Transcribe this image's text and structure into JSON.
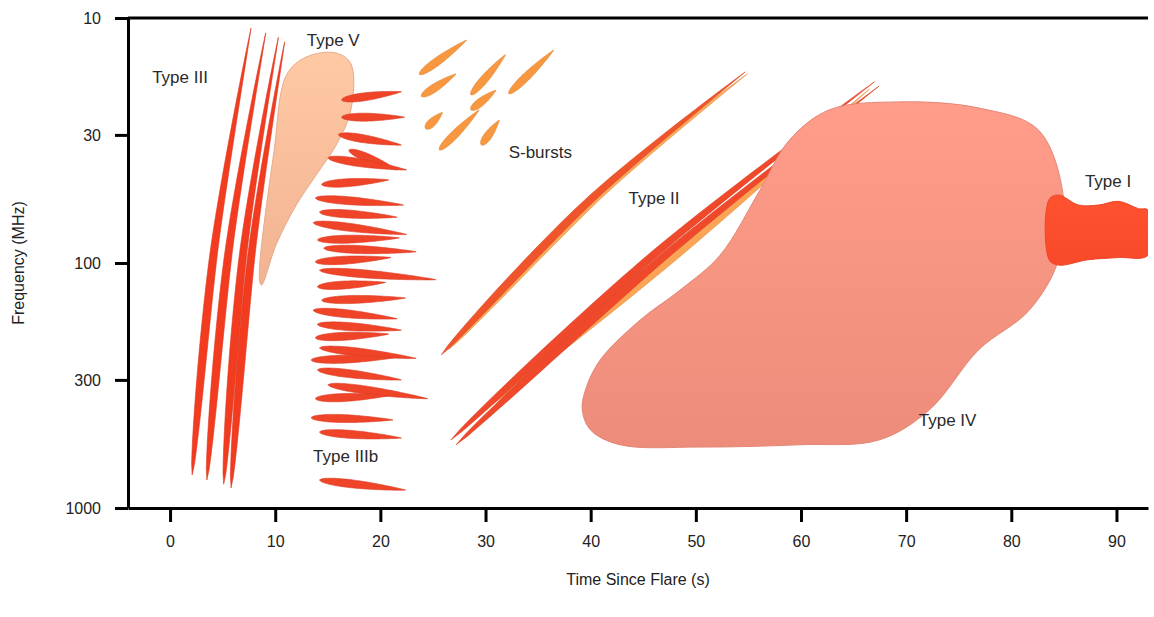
{
  "chart_data": {
    "type": "schematic",
    "x_label": "Time Since Flare (s)",
    "y_label": "Frequency (MHz)",
    "xlim": [
      -4,
      93
    ],
    "xticks": [
      0,
      10,
      20,
      30,
      40,
      50,
      60,
      70,
      80,
      90
    ],
    "ylim": [
      10,
      1000
    ],
    "yticks": [
      10,
      30,
      100,
      300,
      1000
    ],
    "log": "y",
    "series": [
      {
        "name": "Type V",
        "type": "region",
        "color": "#f9b896",
        "label_at": [
          13.0,
          12.5
        ],
        "shapes": [
          {
            "t": [
              8.5,
              9.9,
              11.1,
              13.0,
              15.8,
              17.2,
              17.2,
              15.8,
              13.9,
              12.0,
              10.1,
              8.7
            ],
            "f": [
              117,
              34.6,
              17,
              14.4,
              13.9,
              15.4,
              23.7,
              33,
              43.7,
              58,
              84,
              123
            ]
          }
        ]
      },
      {
        "name": "Type III",
        "type": "streak",
        "color": "#f33b1f",
        "label_at": [
          -1.7,
          17.6
        ],
        "shapes": [
          {
            "t": [
              2.1,
              4.2,
              7.7
            ],
            "f": [
              733,
              88,
              11
            ]
          },
          {
            "t": [
              3.5,
              5.6,
              9.1
            ],
            "f": [
              769,
              88,
              11.5
            ]
          },
          {
            "t": [
              5.1,
              7.0,
              10.3
            ],
            "f": [
              800,
              88,
              12
            ]
          },
          {
            "t": [
              5.8,
              7.8,
              10.9
            ],
            "f": [
              828,
              88,
              12.5
            ]
          }
        ]
      },
      {
        "name": "Type IIIb",
        "type": "streak",
        "color": "#f04429",
        "label_at": [
          13.6,
          620
        ],
        "shapes": [
          {
            "t": [
              16.3,
              22.0
            ],
            "f": [
              21.6,
              20
            ]
          },
          {
            "t": [
              16.3,
              22.3
            ],
            "f": [
              25.4,
              25.4
            ]
          },
          {
            "t": [
              16.0,
              22.0
            ],
            "f": [
              29.9,
              33
            ]
          },
          {
            "t": [
              17.0,
              21.6
            ],
            "f": [
              34.6,
              41.7
            ]
          },
          {
            "t": [
              15.0,
              22.5
            ],
            "f": [
              37.2,
              41.7
            ]
          },
          {
            "t": [
              14.4,
              20.8
            ],
            "f": [
              47.8,
              45.8
            ]
          },
          {
            "t": [
              13.8,
              22.2
            ],
            "f": [
              54.3,
              58
            ]
          },
          {
            "t": [
              14.2,
              21.6
            ],
            "f": [
              62,
              65
            ]
          },
          {
            "t": [
              13.6,
              22.5
            ],
            "f": [
              68.5,
              76.5
            ]
          },
          {
            "t": [
              14.0,
              21.8
            ],
            "f": [
              80.5,
              79
            ]
          },
          {
            "t": [
              14.6,
              23.4
            ],
            "f": [
              87,
              90
            ]
          },
          {
            "t": [
              13.8,
              21.0
            ],
            "f": [
              99,
              95
            ]
          },
          {
            "t": [
              14.2,
              25.3
            ],
            "f": [
              107,
              117
            ]
          },
          {
            "t": [
              14.0,
              20.5
            ],
            "f": [
              125,
              120
            ]
          },
          {
            "t": [
              14.4,
              22.4
            ],
            "f": [
              142,
              139
            ]
          },
          {
            "t": [
              13.6,
              21.6
            ],
            "f": [
              156,
              169
            ]
          },
          {
            "t": [
              14.0,
              22.0
            ],
            "f": [
              178,
              188
            ]
          },
          {
            "t": [
              13.8,
              20.8
            ],
            "f": [
              202,
              195
            ]
          },
          {
            "t": [
              14.2,
              23.4
            ],
            "f": [
              222,
              245
            ]
          },
          {
            "t": [
              13.4,
              21.2
            ],
            "f": [
              249,
              244
            ]
          },
          {
            "t": [
              14.0,
              22.0
            ],
            "f": [
              273,
              300
            ]
          },
          {
            "t": [
              15.0,
              24.5
            ],
            "f": [
              314,
              358
            ]
          },
          {
            "t": [
              13.8,
              20.8
            ],
            "f": [
              358,
              348
            ]
          },
          {
            "t": [
              13.4,
              21.2
            ],
            "f": [
              428,
              437
            ]
          },
          {
            "t": [
              14.2,
              22.0
            ],
            "f": [
              490,
              518
            ]
          },
          {
            "t": [
              14.2,
              22.4
            ],
            "f": [
              769,
              845
            ]
          }
        ]
      },
      {
        "name": "S-bursts",
        "type": "streak",
        "color": "#f7973f",
        "label_at": [
          32.2,
          35.6
        ],
        "shapes": [
          {
            "t": [
              23.7,
              28.2
            ],
            "f": [
              17,
              12.3
            ]
          },
          {
            "t": [
              23.9,
              27.2
            ],
            "f": [
              20.9,
              16.9
            ]
          },
          {
            "t": [
              24.3,
              25.9
            ],
            "f": [
              28.3,
              24.3
            ]
          },
          {
            "t": [
              25.6,
              29.4
            ],
            "f": [
              34.6,
              23.7
            ]
          },
          {
            "t": [
              28.6,
              31.9
            ],
            "f": [
              20.6,
              14.1
            ]
          },
          {
            "t": [
              28.6,
              31.0
            ],
            "f": [
              23.7,
              19.7
            ]
          },
          {
            "t": [
              29.6,
              31.3
            ],
            "f": [
              33,
              26.1
            ]
          },
          {
            "t": [
              32.2,
              36.5
            ],
            "f": [
              20.4,
              13.5
            ]
          }
        ]
      },
      {
        "name": "Type II",
        "type": "streak",
        "colors": [
          "#fbaa5c",
          "#f0542a",
          "#fba455",
          "#f0482a",
          "#f0482a"
        ],
        "label_at": [
          43.6,
          55.3
        ],
        "shapes": [
          {
            "t": [
              26.5,
              41.0,
              54.9
            ],
            "f": [
              225,
              52,
              16.9
            ]
          },
          {
            "t": [
              25.8,
              40.0,
              54.7
            ],
            "f": [
              237,
              55,
              16.6
            ]
          },
          {
            "t": [
              29.0,
              48.5,
              66.5
            ],
            "f": [
              420,
              90,
              19.5
            ]
          },
          {
            "t": [
              26.7,
              46.6,
              67.0
            ],
            "f": [
              528,
              88,
              18.2
            ]
          },
          {
            "t": [
              27.2,
              47.1,
              67.4
            ],
            "f": [
              552,
              93,
              19
            ]
          }
        ]
      },
      {
        "name": "Type IV",
        "type": "region",
        "color": "#f4907e",
        "label_at": [
          71.2,
          444
        ],
        "shapes": [
          {
            "t": [
              39.5,
              40.9,
              44.7,
              48.5,
              52.3,
              56.1,
              58.9,
              62.7,
              69.3,
              76.9,
              82.6,
              85.0,
              84.5,
              81.7,
              76.9,
              72.2,
              67.4,
              59.9,
              50.4,
              42.8,
              40.0,
              39.2
            ],
            "f": [
              330,
              249,
              171,
              129,
              93,
              50.4,
              31.5,
              23.7,
              22.0,
              23.3,
              28.7,
              55.3,
              97,
              156,
              226,
              398,
              528,
              552,
              564,
              552,
              481,
              398
            ]
          }
        ]
      },
      {
        "name": "Type I",
        "type": "region",
        "color": "#ff4b2b",
        "label_at": [
          87.0,
          47
        ],
        "shapes": [
          {
            "t": [
              83.6,
              84.5,
              86.4,
              88.3,
              90.2,
              92.1,
              93,
              93,
              90.2,
              87.3,
              84.5,
              83.6
            ],
            "f": [
              55,
              52.8,
              58,
              58,
              56,
              60,
              60.8,
              93,
              95,
              97,
              102,
              97
            ]
          }
        ]
      }
    ]
  }
}
